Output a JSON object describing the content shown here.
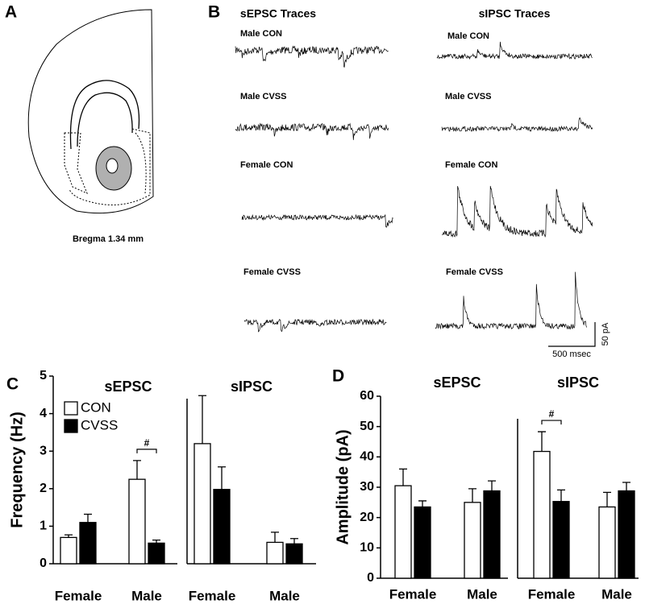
{
  "panel_labels": [
    "A",
    "B",
    "C",
    "D"
  ],
  "panel_a": {
    "caption": "Bregma 1.34 mm"
  },
  "panel_b": {
    "columns": [
      {
        "title": "sEPSC Traces",
        "rows": [
          "Male CON",
          "Male CVSS",
          "Female CON",
          "Female CVSS"
        ]
      },
      {
        "title": "sIPSC Traces",
        "rows": [
          "Male CON",
          "Male CVSS",
          "Female CON",
          "Female CVSS"
        ]
      }
    ],
    "scale_bar": {
      "y": "50 pA",
      "x": "500 msec"
    }
  },
  "chart_data": [
    {
      "type": "bar",
      "ylabel": "Frequency (Hz)",
      "ylim": [
        0,
        5
      ],
      "yticks": [
        0,
        1,
        2,
        3,
        4,
        5
      ],
      "panels": [
        "sEPSC",
        "sIPSC"
      ],
      "categories": [
        "Female",
        "Male",
        "Female",
        "Male"
      ],
      "legend": "upper left",
      "series": [
        {
          "name": "CON",
          "color": "#ffffff",
          "values": [
            0.7,
            2.25,
            3.2,
            0.57
          ],
          "errors": [
            0.07,
            0.5,
            1.28,
            0.27
          ]
        },
        {
          "name": "CVSS",
          "color": "#000000",
          "values": [
            1.1,
            0.55,
            1.98,
            0.53
          ],
          "errors": [
            0.22,
            0.08,
            0.6,
            0.14
          ]
        }
      ],
      "annotations": [
        {
          "text": "#",
          "category": 1
        }
      ]
    },
    {
      "type": "bar",
      "ylabel": "Amplitude (pA)",
      "ylim": [
        0,
        60
      ],
      "yticks": [
        0,
        10,
        20,
        30,
        40,
        50,
        60
      ],
      "panels": [
        "sEPSC",
        "sIPSC"
      ],
      "categories": [
        "Female",
        "Male",
        "Female",
        "Male"
      ],
      "series": [
        {
          "color": "#ffffff",
          "values": [
            30.5,
            25,
            41.8,
            23.5
          ],
          "errors": [
            5.5,
            4.5,
            6.5,
            4.8
          ]
        },
        {
          "color": "#000000",
          "values": [
            23.5,
            28.8,
            25.3,
            28.8
          ],
          "errors": [
            2,
            3.3,
            3.8,
            2.8
          ]
        }
      ],
      "annotations": [
        {
          "text": "#",
          "category": 2
        }
      ]
    }
  ]
}
